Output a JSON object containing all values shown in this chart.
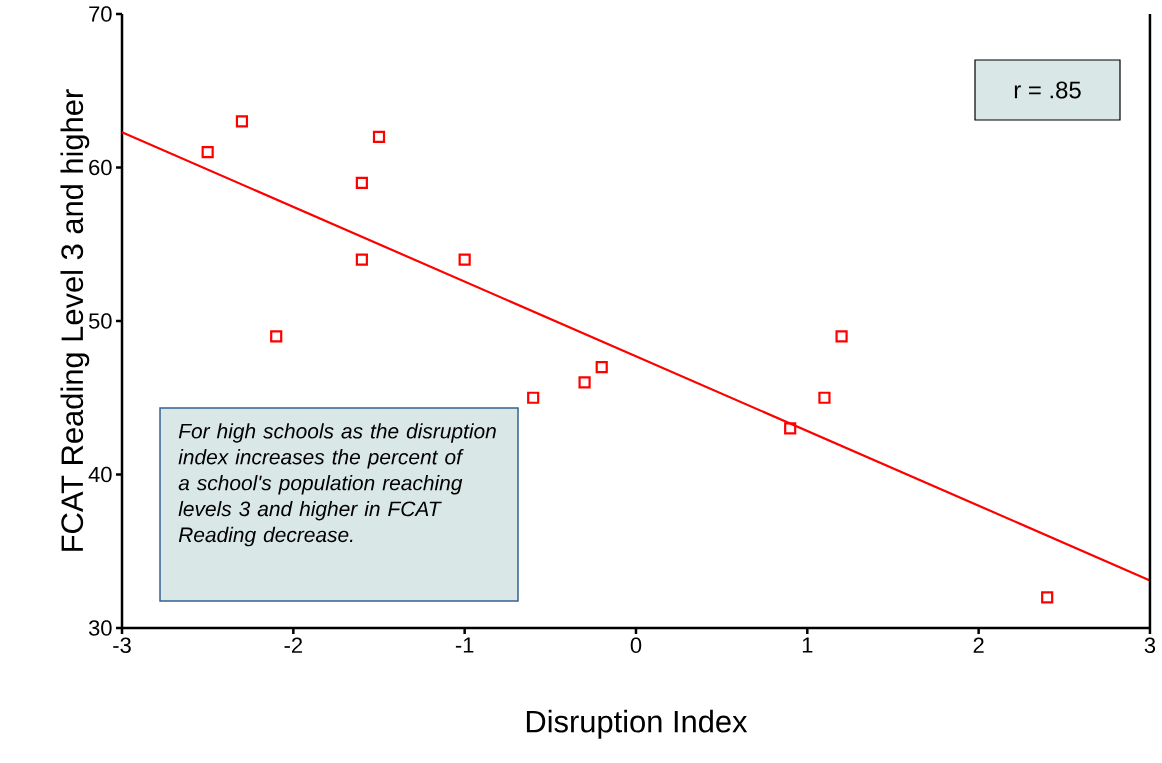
{
  "chart_data": {
    "type": "scatter",
    "xlabel": "Disruption Index",
    "ylabel": "FCAT Reading Level 3 and higher",
    "xlim": [
      -3,
      3
    ],
    "ylim": [
      30,
      70
    ],
    "xticks": [
      -3,
      -2,
      -1,
      0,
      1,
      2,
      3
    ],
    "yticks": [
      30,
      40,
      50,
      60,
      70
    ],
    "grid": false,
    "series": [
      {
        "marker": "square",
        "color": "#ff0000",
        "x": [
          -2.5,
          -2.3,
          -2.1,
          -1.6,
          -1.6,
          -1.5,
          -1.0,
          -0.6,
          -0.3,
          -0.2,
          0.9,
          1.1,
          1.2,
          2.4
        ],
        "values": [
          61,
          63,
          49,
          59,
          54,
          62,
          54,
          45,
          46,
          47,
          43,
          45,
          49,
          32
        ]
      },
      {
        "type": "line",
        "marker": "none",
        "color": "#ff0000",
        "x": [
          -3,
          3
        ],
        "values": [
          62.3,
          33.1
        ]
      }
    ],
    "annotations": [
      "r = .85",
      "*For high schools as the disruption index increases the percent of a school's population reaching levels 3 and higher in FCAT Reading decrease.*"
    ]
  }
}
